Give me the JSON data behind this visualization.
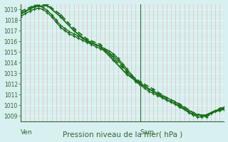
{
  "xlabel": "Pression niveau de la mer( hPa )",
  "bg_color": "#d8f0f0",
  "grid_color_major": "#ffffff",
  "grid_color_minor": "#c8e8e8",
  "grid_color_red": "#e8b0b0",
  "line_color": "#1a6e1a",
  "axis_color": "#336633",
  "tick_color": "#336633",
  "label_color": "#336633",
  "sam_line_color": "#336633",
  "ylim_low": 1008.5,
  "ylim_high": 1019.5,
  "yticks": [
    1009,
    1010,
    1011,
    1012,
    1013,
    1014,
    1015,
    1016,
    1017,
    1018,
    1019
  ],
  "xmin": 0,
  "xmax": 46,
  "ven_x": 0,
  "sam_x": 27,
  "series": [
    {
      "x": [
        0,
        1,
        2,
        3,
        4,
        5,
        6,
        7,
        8,
        9,
        10,
        11,
        12,
        13,
        14,
        15,
        16,
        17,
        18,
        19,
        20,
        21,
        22,
        23,
        24,
        25,
        26,
        27,
        28,
        29,
        30,
        31,
        32,
        33,
        34,
        35,
        36,
        37,
        38,
        39,
        40,
        41,
        42,
        43,
        44,
        45,
        46
      ],
      "y": [
        1018.5,
        1018.8,
        1019.0,
        1019.2,
        1019.3,
        1019.2,
        1018.9,
        1018.5,
        1018.0,
        1017.5,
        1017.2,
        1016.9,
        1016.7,
        1016.5,
        1016.3,
        1016.1,
        1015.9,
        1015.7,
        1015.5,
        1015.3,
        1015.1,
        1014.8,
        1014.4,
        1013.9,
        1013.4,
        1012.9,
        1012.4,
        1012.1,
        1011.8,
        1011.5,
        1011.3,
        1011.1,
        1010.9,
        1010.7,
        1010.5,
        1010.3,
        1010.0,
        1009.8,
        1009.5,
        1009.3,
        1009.1,
        1009.0,
        1009.1,
        1009.3,
        1009.5,
        1009.6,
        1009.7
      ],
      "marker": "+",
      "ms": 3.0,
      "lw": 1.0,
      "ls": "-"
    },
    {
      "x": [
        0,
        1,
        2,
        3,
        4,
        5,
        6,
        7,
        8,
        9,
        10,
        11,
        12,
        13,
        14,
        15,
        16,
        17,
        18,
        19,
        20,
        21,
        22,
        23,
        24,
        25,
        26,
        27,
        28,
        29,
        30,
        31,
        32,
        33,
        34,
        35,
        36,
        37,
        38,
        39,
        40,
        41,
        42,
        43,
        44,
        45,
        46
      ],
      "y": [
        1018.3,
        1018.6,
        1018.8,
        1019.0,
        1019.1,
        1019.0,
        1018.7,
        1018.3,
        1017.8,
        1017.3,
        1017.0,
        1016.7,
        1016.5,
        1016.3,
        1016.1,
        1015.9,
        1015.7,
        1015.5,
        1015.3,
        1015.1,
        1014.9,
        1014.6,
        1014.2,
        1013.7,
        1013.2,
        1012.7,
        1012.2,
        1011.9,
        1011.6,
        1011.3,
        1011.1,
        1010.9,
        1010.7,
        1010.5,
        1010.3,
        1010.1,
        1009.8,
        1009.6,
        1009.3,
        1009.1,
        1008.9,
        1008.9,
        1009.0,
        1009.2,
        1009.4,
        1009.5,
        1009.6
      ],
      "marker": "+",
      "ms": 3.0,
      "lw": 1.0,
      "ls": "-"
    },
    {
      "x": [
        0,
        3,
        6,
        9,
        12,
        15,
        18,
        21,
        24,
        27,
        30,
        33,
        36,
        39,
        42,
        45,
        46
      ],
      "y": [
        1018.6,
        1019.25,
        1019.35,
        1018.3,
        1017.0,
        1016.0,
        1015.5,
        1014.2,
        1012.9,
        1012.0,
        1011.3,
        1010.5,
        1009.9,
        1009.1,
        1009.05,
        1009.6,
        1009.7
      ],
      "marker": "+",
      "ms": 3.5,
      "lw": 1.3,
      "ls": "-"
    },
    {
      "x": [
        0,
        3,
        6,
        9,
        12,
        15,
        18,
        21,
        24,
        27,
        30,
        33,
        36,
        39,
        42,
        45,
        46
      ],
      "y": [
        1018.8,
        1019.35,
        1019.45,
        1018.5,
        1017.2,
        1016.2,
        1015.7,
        1014.4,
        1013.1,
        1012.2,
        1011.5,
        1010.7,
        1010.1,
        1009.3,
        1008.9,
        1009.7,
        1009.8
      ],
      "marker": "+",
      "ms": 3.5,
      "lw": 1.3,
      "ls": "--",
      "dashes": [
        4,
        2
      ]
    }
  ]
}
